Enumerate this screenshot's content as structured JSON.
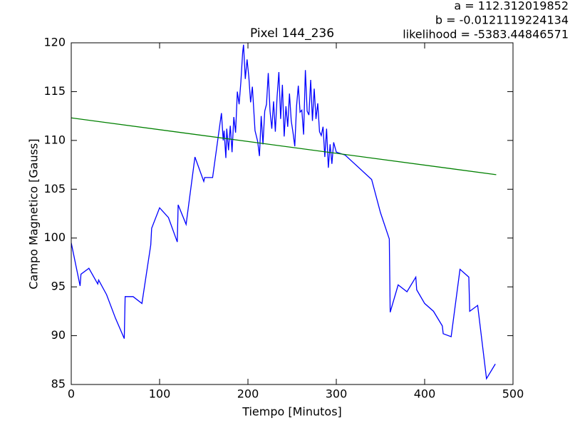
{
  "chart_data": {
    "type": "line",
    "title": "Pixel 144_236",
    "annotations": [
      "a = 112.312019852",
      "b = -0.0121119224134",
      "likelihood = -5383.44846571"
    ],
    "xlabel": "Tiempo [Minutos]",
    "ylabel": "Campo Magnetico [Gauss]",
    "xlim": [
      0,
      500
    ],
    "xticks": [
      0,
      100,
      200,
      300,
      400,
      500
    ],
    "ylim": [
      85,
      120
    ],
    "yticks": [
      85,
      90,
      95,
      100,
      105,
      110,
      115,
      120
    ],
    "grid": false,
    "series": [
      {
        "color": "#0000ff",
        "x": [
          0,
          10,
          11,
          20,
          30,
          31,
          40,
          50,
          60,
          61,
          70,
          80,
          90,
          91,
          100,
          110,
          120,
          121,
          130,
          140,
          150,
          151,
          160,
          170,
          172,
          173,
          175,
          176,
          178,
          180,
          182,
          184,
          186,
          188,
          190,
          192,
          194,
          195,
          197,
          199,
          201,
          203,
          205,
          208,
          211,
          213,
          215,
          217,
          219,
          221,
          223,
          225,
          227,
          229,
          231,
          233,
          235,
          237,
          239,
          241,
          243,
          245,
          247,
          249,
          251,
          253,
          255,
          257,
          259,
          261,
          263,
          265,
          267,
          269,
          271,
          273,
          275,
          277,
          279,
          281,
          283,
          285,
          287,
          289,
          291,
          293,
          295,
          297,
          300,
          310,
          340,
          350,
          360,
          361,
          370,
          380,
          390,
          391,
          400,
          410,
          420,
          421,
          430,
          440,
          450,
          451,
          460,
          470,
          480
        ],
        "values": [
          99.5,
          95.1,
          96.3,
          96.9,
          95.3,
          95.7,
          94.2,
          91.8,
          89.7,
          94.0,
          94.0,
          93.3,
          99.3,
          101.0,
          103.1,
          102.1,
          99.6,
          103.4,
          101.4,
          108.3,
          105.8,
          106.2,
          106.2,
          112.8,
          110.0,
          111.0,
          108.2,
          111.2,
          109.0,
          111.5,
          108.8,
          112.4,
          110.8,
          115.0,
          113.7,
          116.0,
          119.0,
          119.8,
          116.3,
          118.3,
          116.5,
          113.9,
          115.5,
          111.0,
          109.9,
          108.4,
          112.5,
          109.6,
          113.0,
          113.7,
          116.9,
          113.0,
          111.2,
          114.0,
          110.9,
          114.5,
          117.0,
          112.2,
          115.7,
          110.4,
          113.5,
          111.4,
          114.8,
          112.0,
          110.8,
          109.4,
          113.5,
          115.6,
          112.9,
          113.1,
          110.6,
          117.2,
          113.0,
          112.6,
          116.2,
          112.0,
          115.3,
          112.2,
          113.8,
          110.9,
          110.5,
          111.4,
          108.3,
          111.2,
          107.2,
          109.6,
          107.6,
          109.8,
          108.8,
          108.5,
          106.0,
          102.6,
          99.9,
          92.4,
          95.2,
          94.5,
          96.0,
          94.7,
          93.3,
          92.5,
          91.0,
          90.2,
          89.9,
          96.8,
          96.0,
          92.5,
          93.1,
          85.6,
          87.1
        ]
      },
      {
        "color": "#008000",
        "x": [
          0,
          481
        ],
        "values": [
          112.31,
          106.49
        ]
      }
    ]
  }
}
